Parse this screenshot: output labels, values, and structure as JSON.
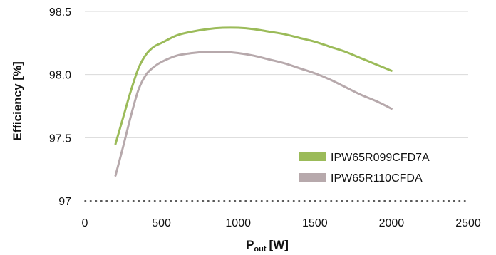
{
  "chart_data": {
    "type": "line",
    "title": "",
    "xlabel_main": "P",
    "xlabel_sub": "out",
    "xlabel_unit": "[W]",
    "ylabel": "Efficiency [%]",
    "xlim": [
      0,
      2500
    ],
    "ylim": [
      97,
      98.5
    ],
    "xticks": [
      0,
      500,
      1000,
      1500,
      2000,
      2500
    ],
    "xtick_labels": [
      "0",
      "500",
      "1000",
      "1500",
      "2000",
      "2500"
    ],
    "yticks": [
      97,
      97.5,
      98.0,
      98.5
    ],
    "ytick_labels": [
      "97",
      "97.5",
      "98.0",
      "98.5"
    ],
    "grid": true,
    "legend_position": "bottom-right",
    "series": [
      {
        "name": "IPW65R099CFD7A",
        "color": "#9bbb59",
        "x": [
          200,
          250,
          300,
          350,
          400,
          450,
          500,
          600,
          700,
          800,
          900,
          1000,
          1100,
          1200,
          1300,
          1400,
          1500,
          1600,
          1700,
          1800,
          1900,
          2000
        ],
        "y": [
          97.45,
          97.66,
          97.87,
          98.05,
          98.16,
          98.22,
          98.25,
          98.31,
          98.34,
          98.36,
          98.37,
          98.37,
          98.36,
          98.34,
          98.32,
          98.29,
          98.26,
          98.22,
          98.18,
          98.13,
          98.08,
          98.03
        ]
      },
      {
        "name": "IPW65R110CFDA",
        "color": "#b7a9ac",
        "x": [
          200,
          250,
          300,
          350,
          400,
          450,
          500,
          600,
          700,
          800,
          900,
          1000,
          1100,
          1200,
          1300,
          1400,
          1500,
          1600,
          1700,
          1800,
          1900,
          2000
        ],
        "y": [
          97.2,
          97.43,
          97.67,
          97.88,
          98.0,
          98.06,
          98.1,
          98.15,
          98.17,
          98.18,
          98.18,
          98.17,
          98.15,
          98.12,
          98.09,
          98.05,
          98.01,
          97.96,
          97.9,
          97.84,
          97.79,
          97.73
        ]
      }
    ]
  }
}
